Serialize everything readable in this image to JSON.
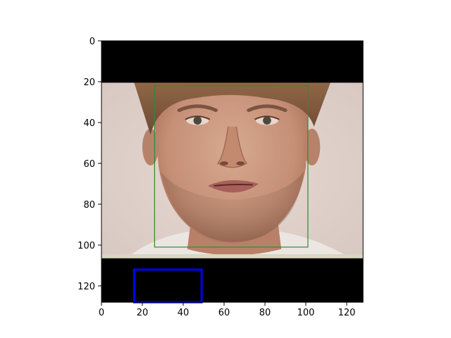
{
  "plot": {
    "xlim": [
      0,
      128
    ],
    "ylim": [
      128,
      0
    ],
    "x_ticks": [
      0,
      20,
      40,
      60,
      80,
      100,
      120
    ],
    "y_ticks": [
      0,
      20,
      40,
      60,
      80,
      100,
      120
    ],
    "x_tick_labels": [
      "0",
      "20",
      "40",
      "60",
      "80",
      "100",
      "120"
    ],
    "y_tick_labels": [
      "0",
      "20",
      "40",
      "60",
      "80",
      "100",
      "120"
    ]
  },
  "image_content": {
    "subject": "face photo",
    "background_color": "#e0d2cc",
    "skin_color": "#c99882",
    "hair_color": "#8a5e42",
    "mask_color": "#000000",
    "black_band_top": [
      0,
      20.5
    ],
    "black_band_bottom": [
      106.5,
      128
    ],
    "strip_color": "#d8d6c0",
    "strip_rows": [
      104.5,
      106.5
    ]
  },
  "boxes": [
    {
      "name": "face-bounding-box",
      "color": "#2e8b2e",
      "x0": 26,
      "y0": 22,
      "x1": 101,
      "y1": 101,
      "linewidth": 1
    },
    {
      "name": "blue-box",
      "color": "#0000ff",
      "x0": 16,
      "y0": 112,
      "x1": 49,
      "y1": 128,
      "linewidth": 3
    }
  ]
}
